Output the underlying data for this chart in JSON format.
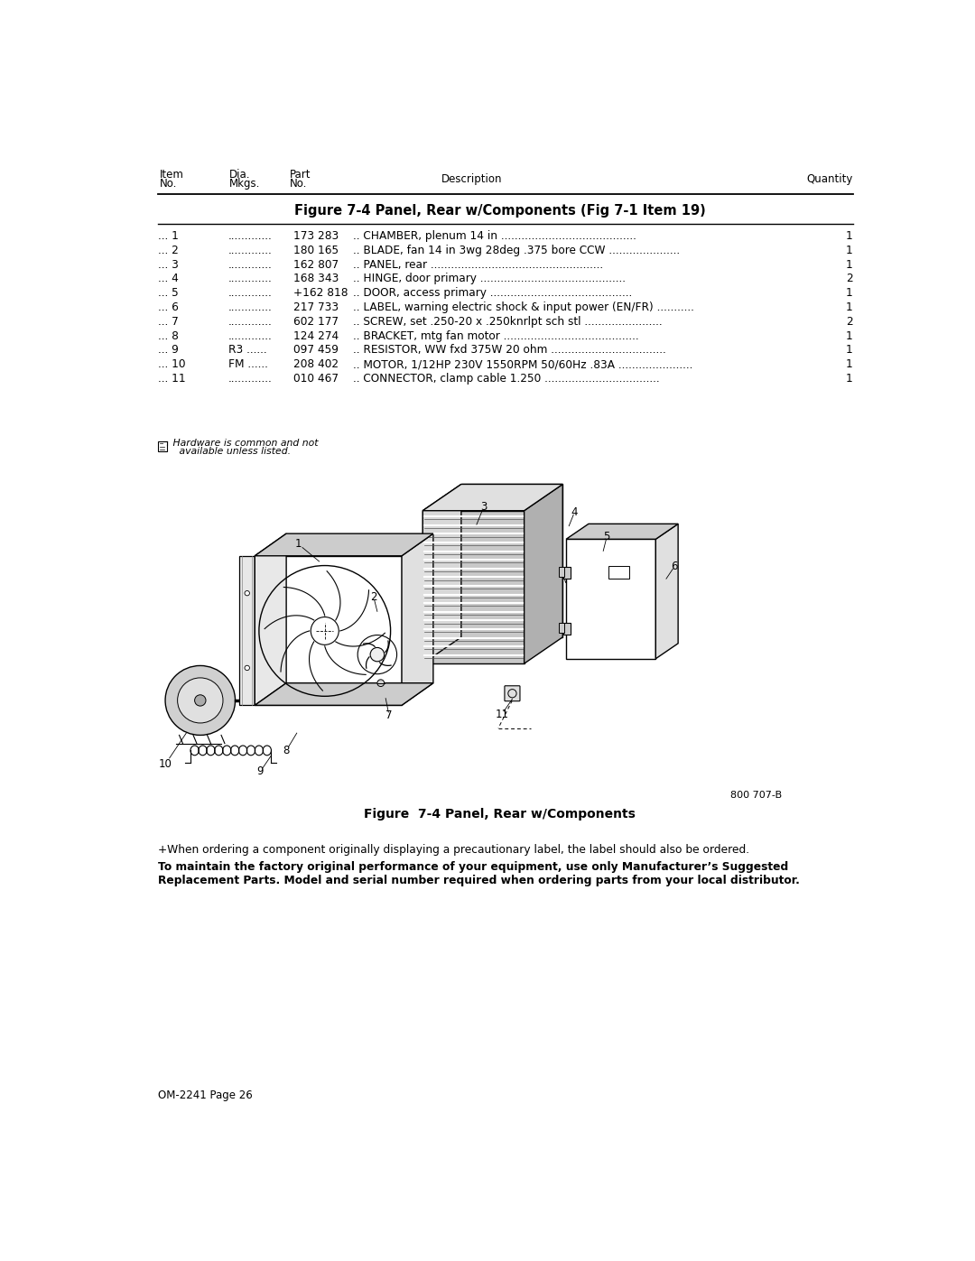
{
  "title": "Figure 7-4 Panel, Rear w/Components (Fig 7-1 Item 19)",
  "figure_caption": "Figure  7-4 Panel, Rear w/Components",
  "page_label": "OM-2241 Page 26",
  "diagram_ref": "800 707-B",
  "hardware_note_line1": " Hardware is common and not",
  "hardware_note_line2": "   available unless listed.",
  "footnote_plus": "+When ordering a component originally displaying a precautionary label, the label should also be ordered.",
  "footnote_bold_line1": "To maintain the factory original performance of your equipment, use only Manufacturer’s Suggested",
  "footnote_bold_line2": "Replacement Parts. Model and serial number required when ordering parts from your local distributor.",
  "bg_color": "#ffffff",
  "row_texts": [
    [
      "... 1",
      ".............",
      "173 283",
      ".. CHAMBER, plenum 14 in ........................................",
      "1"
    ],
    [
      "... 2",
      ".............",
      "180 165",
      ".. BLADE, fan 14 in 3wg 28deg .375 bore CCW .....................",
      "1"
    ],
    [
      "... 3",
      ".............",
      "162 807",
      ".. PANEL, rear ...................................................",
      "1"
    ],
    [
      "... 4",
      ".............",
      "168 343",
      ".. HINGE, door primary ...........................................",
      "2"
    ],
    [
      "... 5",
      ".............",
      "+162 818",
      ".. DOOR, access primary ..........................................",
      "1"
    ],
    [
      "... 6",
      ".............",
      "217 733",
      ".. LABEL, warning electric shock & input power (EN/FR) ...........",
      "1"
    ],
    [
      "... 7",
      ".............",
      "602 177",
      ".. SCREW, set .250-20 x .250knrlpt sch stl .......................",
      "2"
    ],
    [
      "... 8",
      ".............",
      "124 274",
      ".. BRACKET, mtg fan motor ........................................",
      "1"
    ],
    [
      "... 9",
      "R3 ......",
      "097 459",
      ".. RESISTOR, WW fxd 375W 20 ohm ..................................",
      "1"
    ],
    [
      "... 10",
      "FM ......",
      "208 402",
      ".. MOTOR, 1/12HP 230V 1550RPM 50/60Hz .83A ......................",
      "1"
    ],
    [
      "... 11",
      ".............",
      "010 467",
      ".. CONNECTOR, clamp cable 1.250 ..................................",
      "1"
    ]
  ]
}
